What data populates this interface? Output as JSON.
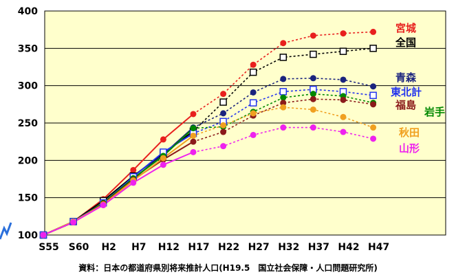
{
  "source_note": "資料：日本の都道府県別将来推計人口(H19.5　国立社会保障・人口問題研究所)",
  "chart_data": {
    "type": "line",
    "categories": [
      "S55",
      "S60",
      "H2",
      "H7",
      "H12",
      "H17",
      "H22",
      "H27",
      "H32",
      "H37",
      "H42",
      "H47"
    ],
    "ylim": [
      100,
      400
    ],
    "yticks": [
      100,
      150,
      200,
      250,
      300,
      350,
      400
    ],
    "grid": true,
    "background": "#ffffcc",
    "series": [
      {
        "name": "宮城",
        "color": "#e8201e",
        "marker": "circle-filled",
        "label_color": "#e8201e",
        "values": [
          100,
          118,
          148,
          187,
          228,
          262,
          289,
          328,
          357,
          367,
          370,
          372
        ]
      },
      {
        "name": "全国",
        "color": "#000000",
        "marker": "square-open",
        "label_color": "#000000",
        "values": [
          100,
          118,
          146,
          179,
          209,
          239,
          278,
          318,
          338,
          342,
          346,
          350
        ]
      },
      {
        "name": "青森",
        "color": "#1a237e",
        "marker": "circle-filled",
        "label_color": "#1a237e",
        "values": [
          100,
          117,
          143,
          175,
          208,
          244,
          263,
          291,
          309,
          310,
          308,
          299
        ]
      },
      {
        "name": "東北計",
        "color": "#2233ee",
        "marker": "square-open",
        "label_color": "#2233ee",
        "values": [
          100,
          118,
          143,
          178,
          211,
          236,
          252,
          277,
          292,
          295,
          292,
          287
        ]
      },
      {
        "name": "岩手",
        "color": "#008800",
        "marker": "circle-filled",
        "label_color": "#008800",
        "values": [
          100,
          117,
          143,
          176,
          206,
          243,
          245,
          265,
          284,
          289,
          286,
          277
        ]
      },
      {
        "name": "福島",
        "color": "#8b1a1a",
        "marker": "circle-filled",
        "label_color": "#8b1a1a",
        "values": [
          100,
          117,
          142,
          174,
          201,
          225,
          238,
          260,
          277,
          282,
          281,
          275
        ]
      },
      {
        "name": "秋田",
        "color": "#f0a020",
        "marker": "circle-filled",
        "label_color": "#f0a020",
        "values": [
          100,
          118,
          141,
          173,
          203,
          233,
          247,
          263,
          271,
          268,
          258,
          244
        ]
      },
      {
        "name": "山形",
        "color": "#ee22ee",
        "marker": "circle-filled",
        "label_color": "#ee22ee",
        "values": [
          100,
          117,
          140,
          170,
          194,
          211,
          219,
          234,
          244,
          244,
          238,
          229
        ]
      }
    ],
    "projected_from_index": 5,
    "label_slots": [
      {
        "series": "宮城"
      },
      {
        "series": "全国"
      },
      {
        "series": "青森"
      },
      {
        "series": "東北計"
      },
      {
        "series": "福島"
      },
      {
        "series": "岩手"
      },
      {
        "series": "秋田"
      },
      {
        "series": "山形"
      }
    ]
  }
}
